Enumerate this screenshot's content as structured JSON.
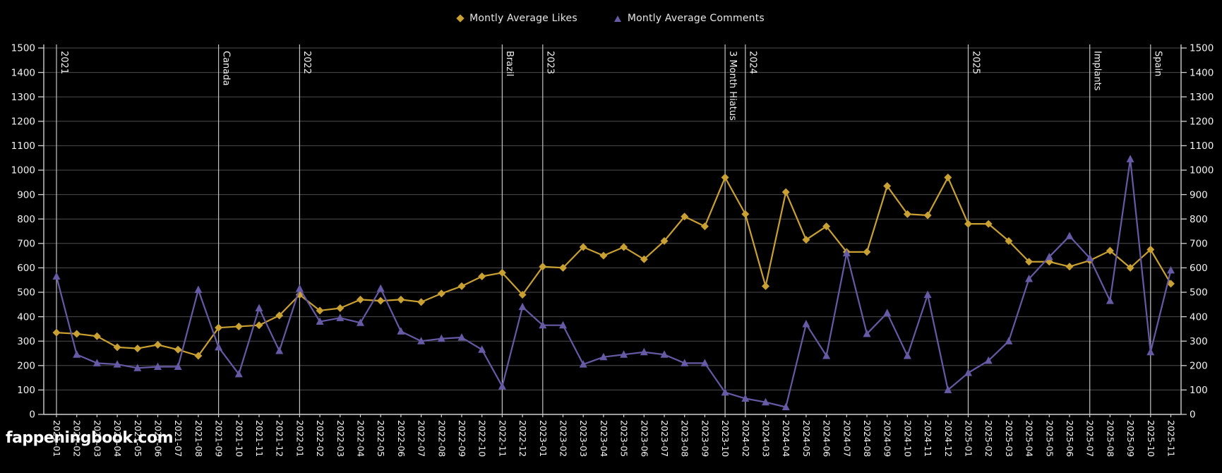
{
  "legend": {
    "items": [
      {
        "label": "Montly Average Likes",
        "marker": "diamond",
        "color": "#c9a032"
      },
      {
        "label": "Montly Average Comments",
        "marker": "triangle",
        "color": "#665aa5"
      }
    ]
  },
  "watermark": "fappeningbook.com",
  "colors": {
    "background": "#000000",
    "grid": "#4d4d4d",
    "annotation_line": "#c4c4c4",
    "axis": "#d0d0d0",
    "tick_text": "#f2f2f2",
    "annotation_text": "#f2f2f2",
    "legend_text": "#e6e6e6",
    "likes": "#c9a032",
    "comments": "#665aa5"
  },
  "chart_data": {
    "type": "line",
    "title": "",
    "xlabel": "",
    "ylabel": "",
    "ylim": [
      0,
      1500
    ],
    "ytick_step": 100,
    "grid": true,
    "legend_position": "top-center",
    "y_axis_sides": [
      "left",
      "right"
    ],
    "categories": [
      "2021-01",
      "2021-02",
      "2021-03",
      "2021-04",
      "2021-05",
      "2021-06",
      "2021-07",
      "2021-08",
      "2021-09",
      "2021-10",
      "2021-11",
      "2021-12",
      "2022-01",
      "2022-02",
      "2022-03",
      "2022-04",
      "2022-05",
      "2022-06",
      "2022-07",
      "2022-08",
      "2022-09",
      "2022-10",
      "2022-11",
      "2022-12",
      "2023-01",
      "2023-02",
      "2023-03",
      "2023-04",
      "2023-05",
      "2023-06",
      "2023-07",
      "2023-08",
      "2023-09",
      "2023-10",
      "2024-02",
      "2024-03",
      "2024-04",
      "2024-05",
      "2024-06",
      "2024-07",
      "2024-08",
      "2024-09",
      "2024-10",
      "2024-11",
      "2024-12",
      "2025-01",
      "2025-02",
      "2025-03",
      "2025-04",
      "2025-05",
      "2025-06",
      "2025-07",
      "2025-08",
      "2025-09",
      "2025-10",
      "2025-11"
    ],
    "series": [
      {
        "name": "Montly Average Likes",
        "marker": "diamond",
        "color": "#c9a032",
        "values": [
          335,
          330,
          320,
          275,
          270,
          285,
          265,
          240,
          355,
          360,
          365,
          405,
          490,
          425,
          435,
          470,
          465,
          470,
          460,
          495,
          525,
          565,
          580,
          490,
          605,
          600,
          685,
          650,
          685,
          635,
          710,
          810,
          770,
          970,
          820,
          525,
          910,
          715,
          770,
          665,
          665,
          935,
          820,
          815,
          970,
          780,
          780,
          710,
          625,
          625,
          605,
          630,
          670,
          600,
          675,
          535
        ]
      },
      {
        "name": "Montly Average Comments",
        "marker": "triangle",
        "color": "#665aa5",
        "values": [
          565,
          245,
          210,
          205,
          190,
          195,
          195,
          510,
          275,
          165,
          435,
          260,
          515,
          380,
          395,
          375,
          515,
          340,
          300,
          310,
          315,
          265,
          115,
          440,
          365,
          365,
          205,
          235,
          245,
          255,
          245,
          210,
          210,
          90,
          65,
          50,
          30,
          370,
          240,
          660,
          330,
          415,
          240,
          490,
          100,
          170,
          220,
          300,
          555,
          645,
          730,
          640,
          465,
          1045,
          255,
          590
        ]
      }
    ],
    "annotations": [
      {
        "label": "2021",
        "category": "2021-01"
      },
      {
        "label": "Canada",
        "category": "2021-09"
      },
      {
        "label": "2022",
        "category": "2022-01"
      },
      {
        "label": "Brazil",
        "category": "2022-11"
      },
      {
        "label": "2023",
        "category": "2023-01"
      },
      {
        "label": "3 Month Hiatus",
        "category": "2023-10"
      },
      {
        "label": "2024",
        "category": "2024-02"
      },
      {
        "label": "2025",
        "category": "2025-01"
      },
      {
        "label": "Implants",
        "category": "2025-07"
      },
      {
        "label": "Spain",
        "category": "2025-10"
      }
    ]
  }
}
